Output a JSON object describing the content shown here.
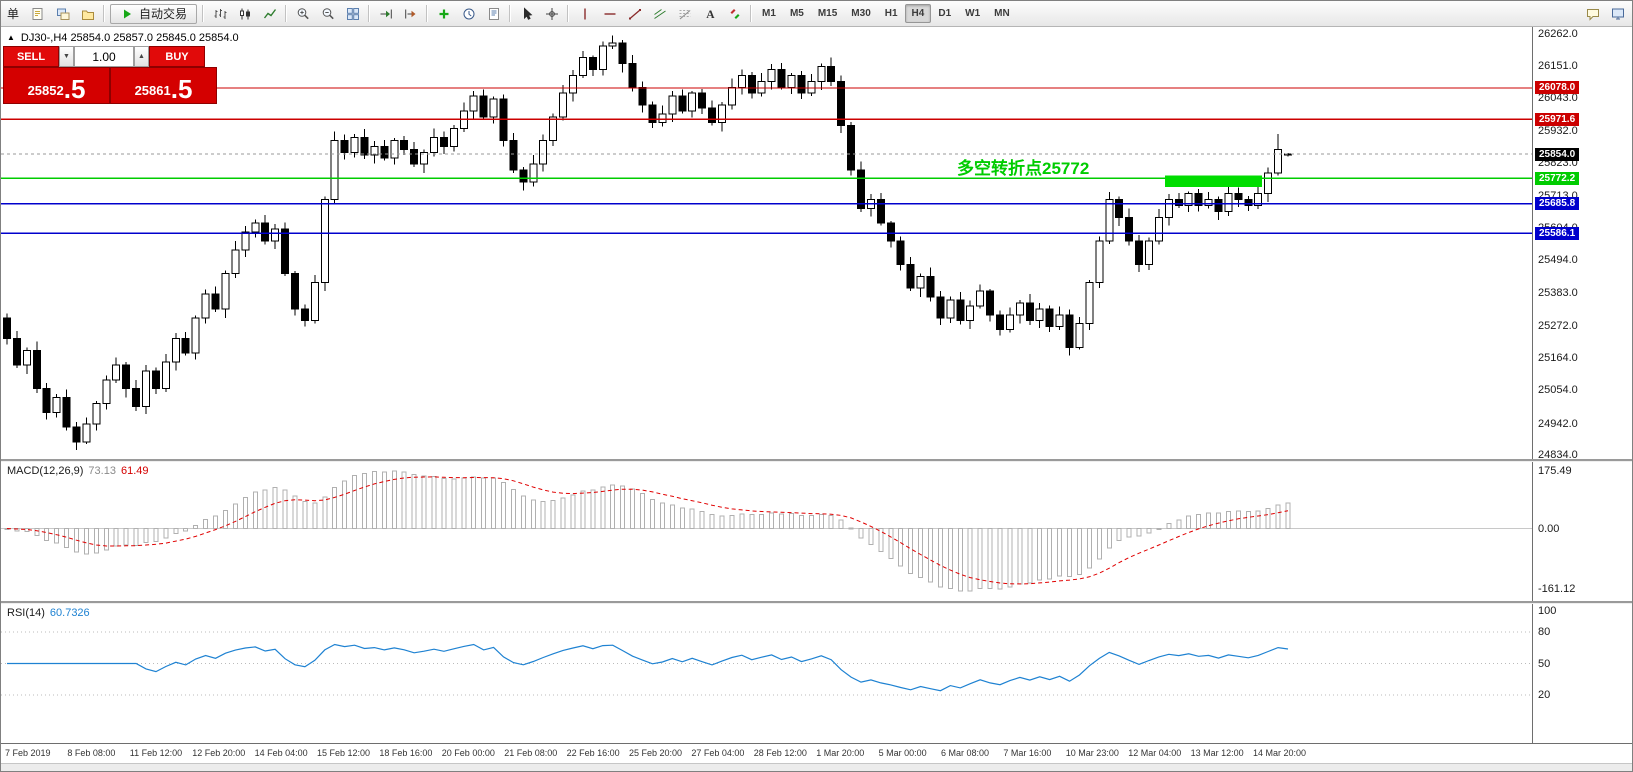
{
  "toolbar": {
    "menu_text": "单",
    "autotrading_label": "自动交易",
    "left_groups": [
      [
        "new-order",
        "chart-windows",
        "profiles"
      ],
      [
        "bar-chart",
        "candle-chart",
        "line-chart"
      ],
      [
        "zoom-in",
        "zoom-out",
        "tile-windows"
      ],
      [
        "auto-scroll",
        "chart-shift"
      ],
      [
        "indicators",
        "periods",
        "templates"
      ],
      [
        "cursor",
        "crosshair"
      ],
      [
        "vertical-line",
        "horizontal-line",
        "trendline",
        "channel",
        "fibonacci",
        "text",
        "arrows"
      ]
    ],
    "timeframes": [
      "M1",
      "M5",
      "M15",
      "M30",
      "H1",
      "H4",
      "D1",
      "W1",
      "MN"
    ],
    "active_timeframe": "H4",
    "right_icons": [
      "chat",
      "layout"
    ]
  },
  "symbol_info": {
    "collapse_icon": "▲",
    "text": "DJ30-,H4  25854.0 25857.0 25845.0 25854.0"
  },
  "trade_panel": {
    "sell_label": "SELL",
    "buy_label": "BUY",
    "volume": "1.00",
    "spin_down": "▼",
    "spin_up": "▲",
    "sell_price_main": "25852",
    "sell_price_pips": ".5",
    "buy_price_main": "25861",
    "buy_price_pips": ".5"
  },
  "annotation": {
    "text": "多空转折点25772",
    "color": "#00cc00"
  },
  "chart_data": {
    "type": "candlestick",
    "symbol": "DJ30-",
    "timeframe": "H4",
    "current_bar_ohlc": [
      25854.0,
      25857.0,
      25845.0,
      25854.0
    ],
    "ylim": [
      24822,
      26284
    ],
    "price_axis_labels": [
      "26262.0",
      "26151.0",
      "26043.0",
      "25932.0",
      "25823.0",
      "25713.0",
      "25604.0",
      "25494.0",
      "25383.0",
      "25272.0",
      "25164.0",
      "25054.0",
      "24942.0",
      "24834.0"
    ],
    "hlines": [
      {
        "value": 26078.0,
        "label": "26078.0",
        "color": "#cc0000"
      },
      {
        "value": 25971.6,
        "label": "25971.6",
        "color": "#cc0000"
      },
      {
        "value": 25772.2,
        "label": "25772.2",
        "color": "#00cc00"
      },
      {
        "value": 25685.8,
        "label": "25685.8",
        "color": "#0000cc"
      },
      {
        "value": 25586.1,
        "label": "25586.1",
        "color": "#0000cc"
      }
    ],
    "current_price": {
      "value": 25854.0,
      "label": "25854.0",
      "color": "#000000"
    },
    "highlight_rect": {
      "candle_start": 117,
      "candle_end": 126,
      "price_top": 25782,
      "price_bottom": 25742,
      "color": "#00dd00"
    },
    "candles": [
      [
        25300,
        25315,
        25210,
        25230
      ],
      [
        25230,
        25255,
        25130,
        25140
      ],
      [
        25140,
        25200,
        25110,
        25190
      ],
      [
        25190,
        25220,
        25045,
        25060
      ],
      [
        25060,
        25080,
        24955,
        24980
      ],
      [
        24980,
        25042,
        24962,
        25030
      ],
      [
        25030,
        25058,
        24918,
        24930
      ],
      [
        24930,
        24948,
        24852,
        24880
      ],
      [
        24880,
        24962,
        24872,
        24940
      ],
      [
        24940,
        25018,
        24918,
        25010
      ],
      [
        25010,
        25105,
        24990,
        25090
      ],
      [
        25090,
        25165,
        25080,
        25140
      ],
      [
        25140,
        25150,
        25030,
        25060
      ],
      [
        25060,
        25090,
        24985,
        25000
      ],
      [
        25000,
        25140,
        24975,
        25120
      ],
      [
        25120,
        25132,
        25042,
        25060
      ],
      [
        25060,
        25178,
        25048,
        25150
      ],
      [
        25150,
        25248,
        25122,
        25230
      ],
      [
        25230,
        25252,
        25172,
        25180
      ],
      [
        25180,
        25308,
        25158,
        25300
      ],
      [
        25300,
        25395,
        25280,
        25380
      ],
      [
        25380,
        25405,
        25320,
        25330
      ],
      [
        25330,
        25460,
        25300,
        25450
      ],
      [
        25450,
        25560,
        25435,
        25530
      ],
      [
        25530,
        25610,
        25505,
        25590
      ],
      [
        25590,
        25632,
        25572,
        25620
      ],
      [
        25620,
        25648,
        25548,
        25560
      ],
      [
        25560,
        25618,
        25532,
        25600
      ],
      [
        25600,
        25622,
        25442,
        25450
      ],
      [
        25450,
        25458,
        25308,
        25330
      ],
      [
        25330,
        25345,
        25270,
        25290
      ],
      [
        25290,
        25445,
        25280,
        25420
      ],
      [
        25420,
        25710,
        25390,
        25700
      ],
      [
        25700,
        25930,
        25685,
        25900
      ],
      [
        25900,
        25920,
        25835,
        25860
      ],
      [
        25860,
        25922,
        25842,
        25910
      ],
      [
        25910,
        25938,
        25838,
        25850
      ],
      [
        25850,
        25898,
        25822,
        25880
      ],
      [
        25880,
        25902,
        25832,
        25840
      ],
      [
        25840,
        25908,
        25818,
        25900
      ],
      [
        25900,
        25915,
        25850,
        25870
      ],
      [
        25870,
        25895,
        25810,
        25820
      ],
      [
        25820,
        25870,
        25790,
        25860
      ],
      [
        25860,
        25940,
        25845,
        25910
      ],
      [
        25910,
        25930,
        25855,
        25880
      ],
      [
        25880,
        25952,
        25862,
        25940
      ],
      [
        25940,
        26028,
        25928,
        26000
      ],
      [
        26000,
        26068,
        25972,
        26050
      ],
      [
        26050,
        26072,
        25972,
        25980
      ],
      [
        25980,
        26048,
        25958,
        26040
      ],
      [
        26040,
        26055,
        25880,
        25900
      ],
      [
        25900,
        25925,
        25790,
        25800
      ],
      [
        25800,
        25810,
        25730,
        25760
      ],
      [
        25760,
        25850,
        25745,
        25820
      ],
      [
        25820,
        25920,
        25795,
        25900
      ],
      [
        25900,
        25992,
        25882,
        25980
      ],
      [
        25980,
        26088,
        25968,
        26060
      ],
      [
        26060,
        26138,
        26032,
        26120
      ],
      [
        26120,
        26202,
        26112,
        26180
      ],
      [
        26180,
        26188,
        26118,
        26140
      ],
      [
        26140,
        26235,
        26120,
        26220
      ],
      [
        26220,
        26255,
        26210,
        26230
      ],
      [
        26230,
        26240,
        26130,
        26160
      ],
      [
        26160,
        26190,
        26065,
        26080
      ],
      [
        26080,
        26100,
        25995,
        26020
      ],
      [
        26020,
        26032,
        25942,
        25960
      ],
      [
        25960,
        26018,
        25948,
        25990
      ],
      [
        25990,
        26068,
        25962,
        26050
      ],
      [
        26050,
        26072,
        25992,
        26000
      ],
      [
        26000,
        26068,
        25978,
        26060
      ],
      [
        26060,
        26075,
        25990,
        26010
      ],
      [
        26010,
        26035,
        25950,
        25960
      ],
      [
        25960,
        26030,
        25930,
        26020
      ],
      [
        26020,
        26110,
        26005,
        26080
      ],
      [
        26080,
        26140,
        26055,
        26120
      ],
      [
        26120,
        26132,
        26042,
        26060
      ],
      [
        26060,
        26128,
        26048,
        26100
      ],
      [
        26100,
        26158,
        26072,
        26140
      ],
      [
        26140,
        26162,
        26072,
        26080
      ],
      [
        26080,
        26128,
        26058,
        26120
      ],
      [
        26120,
        26135,
        26040,
        26060
      ],
      [
        26060,
        26125,
        26050,
        26100
      ],
      [
        26100,
        26160,
        26070,
        26150
      ],
      [
        26150,
        26180,
        26085,
        26100
      ],
      [
        26100,
        26120,
        25925,
        25950
      ],
      [
        25950,
        25962,
        25782,
        25800
      ],
      [
        25800,
        25828,
        25658,
        25670
      ],
      [
        25670,
        25718,
        25642,
        25700
      ],
      [
        25700,
        25722,
        25612,
        25620
      ],
      [
        25620,
        25628,
        25538,
        25560
      ],
      [
        25560,
        25575,
        25460,
        25480
      ],
      [
        25480,
        25505,
        25390,
        25400
      ],
      [
        25400,
        25450,
        25370,
        25440
      ],
      [
        25440,
        25470,
        25355,
        25370
      ],
      [
        25370,
        25390,
        25275,
        25300
      ],
      [
        25300,
        25372,
        25282,
        25360
      ],
      [
        25360,
        25388,
        25278,
        25290
      ],
      [
        25290,
        25358,
        25262,
        25340
      ],
      [
        25340,
        25412,
        25332,
        25390
      ],
      [
        25390,
        25398,
        25288,
        25310
      ],
      [
        25310,
        25325,
        25240,
        25260
      ],
      [
        25260,
        25335,
        25250,
        25310
      ],
      [
        25310,
        25360,
        25280,
        25350
      ],
      [
        25350,
        25380,
        25275,
        25290
      ],
      [
        25290,
        25350,
        25265,
        25330
      ],
      [
        25330,
        25342,
        25252,
        25270
      ],
      [
        25270,
        25338,
        25258,
        25310
      ],
      [
        25310,
        25328,
        25172,
        25200
      ],
      [
        25200,
        25302,
        25192,
        25280
      ],
      [
        25280,
        25428,
        25258,
        25420
      ],
      [
        25420,
        25575,
        25400,
        25560
      ],
      [
        25560,
        25725,
        25550,
        25700
      ],
      [
        25700,
        25710,
        25610,
        25640
      ],
      [
        25640,
        25670,
        25545,
        25560
      ],
      [
        25560,
        25580,
        25455,
        25480
      ],
      [
        25480,
        25572,
        25462,
        25560
      ],
      [
        25560,
        25668,
        25548,
        25640
      ],
      [
        25640,
        25718,
        25612,
        25700
      ],
      [
        25700,
        25722,
        25672,
        25680
      ],
      [
        25680,
        25728,
        25658,
        25720
      ],
      [
        25720,
        25735,
        25660,
        25680
      ],
      [
        25680,
        25725,
        25670,
        25700
      ],
      [
        25700,
        25710,
        25630,
        25660
      ],
      [
        25660,
        25750,
        25645,
        25720
      ],
      [
        25720,
        25740,
        25675,
        25700
      ],
      [
        25700,
        25712,
        25662,
        25680
      ],
      [
        25680,
        25748,
        25668,
        25720
      ],
      [
        25720,
        25808,
        25692,
        25790
      ],
      [
        25790,
        25922,
        25782,
        25870
      ],
      [
        25854,
        25857,
        25845,
        25854
      ]
    ],
    "macd": {
      "name": "MACD(12,26,9)",
      "values": [
        "73.13",
        "61.49"
      ],
      "params": [
        12,
        26,
        9
      ],
      "axis_labels": [
        "175.49",
        "0.00",
        "-161.12"
      ],
      "histogram_color": "#b0b0b0",
      "signal_color": "#e00000"
    },
    "rsi": {
      "name": "RSI(14)",
      "value": "60.7326",
      "period": 14,
      "levels": [
        80,
        50,
        20
      ],
      "axis_labels": [
        "100",
        "80",
        "50",
        "20"
      ],
      "line_color": "#1e82d2"
    },
    "time_axis_labels": [
      "7 Feb 2019",
      "8 Feb 08:00",
      "11 Feb 12:00",
      "12 Feb 20:00",
      "14 Feb 04:00",
      "15 Feb 12:00",
      "18 Feb 16:00",
      "20 Feb 00:00",
      "21 Feb 08:00",
      "22 Feb 16:00",
      "25 Feb 20:00",
      "27 Feb 04:00",
      "28 Feb 12:00",
      "1 Mar 20:00",
      "5 Mar 00:00",
      "6 Mar 08:00",
      "7 Mar 16:00",
      "10 Mar 23:00",
      "12 Mar 04:00",
      "13 Mar 12:00",
      "14 Mar 20:00"
    ]
  }
}
